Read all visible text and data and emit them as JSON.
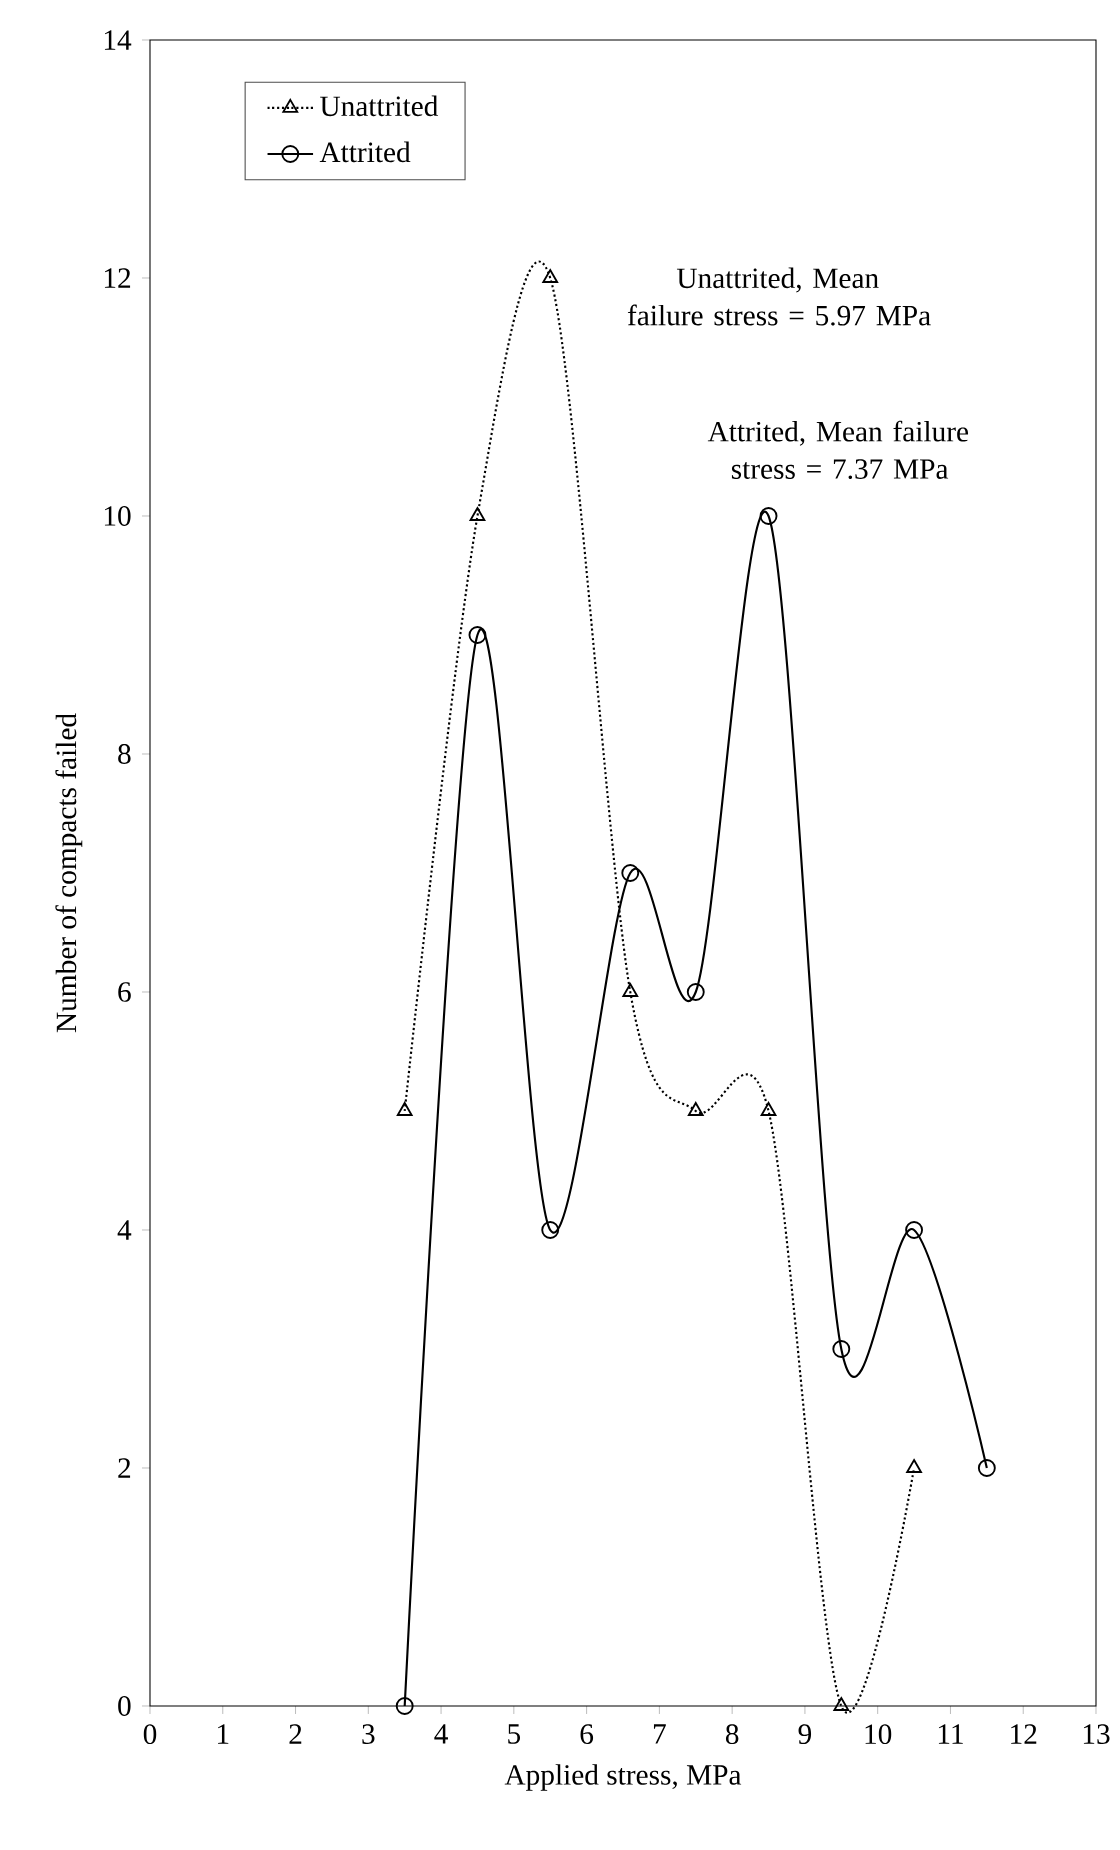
{
  "chart_data": {
    "type": "line",
    "xlabel": "Applied stress, MPa",
    "ylabel": "Number of compacts failed",
    "xlim": [
      0,
      13
    ],
    "xticks": [
      0,
      1,
      2,
      3,
      4,
      5,
      6,
      7,
      8,
      9,
      10,
      11,
      12,
      13
    ],
    "ylim": [
      0,
      14
    ],
    "yticks": [
      0,
      2,
      4,
      6,
      8,
      10,
      12,
      14
    ],
    "series": [
      {
        "name": "Unattrited",
        "color": "#000000",
        "marker": "triangle",
        "line_style": "dotted",
        "x": [
          3.5,
          4.5,
          5.5,
          6.6,
          7.5,
          8.5,
          9.5,
          10.5
        ],
        "values": [
          5,
          10,
          12,
          6,
          5,
          5,
          0,
          2
        ]
      },
      {
        "name": "Attrited",
        "color": "#000000",
        "marker": "circle",
        "line_style": "solid",
        "x": [
          3.5,
          4.5,
          5.5,
          6.6,
          7.5,
          8.5,
          9.5,
          10.5,
          11.5
        ],
        "values": [
          0,
          9,
          4,
          7,
          6,
          10,
          3,
          4,
          2
        ]
      }
    ],
    "annotations": [
      "Unattrited, Mean failure stress = 5.97 MPa",
      "Attrited, Mean failure stress = 7.37 MPa"
    ],
    "legend": "top left",
    "grid": false
  }
}
